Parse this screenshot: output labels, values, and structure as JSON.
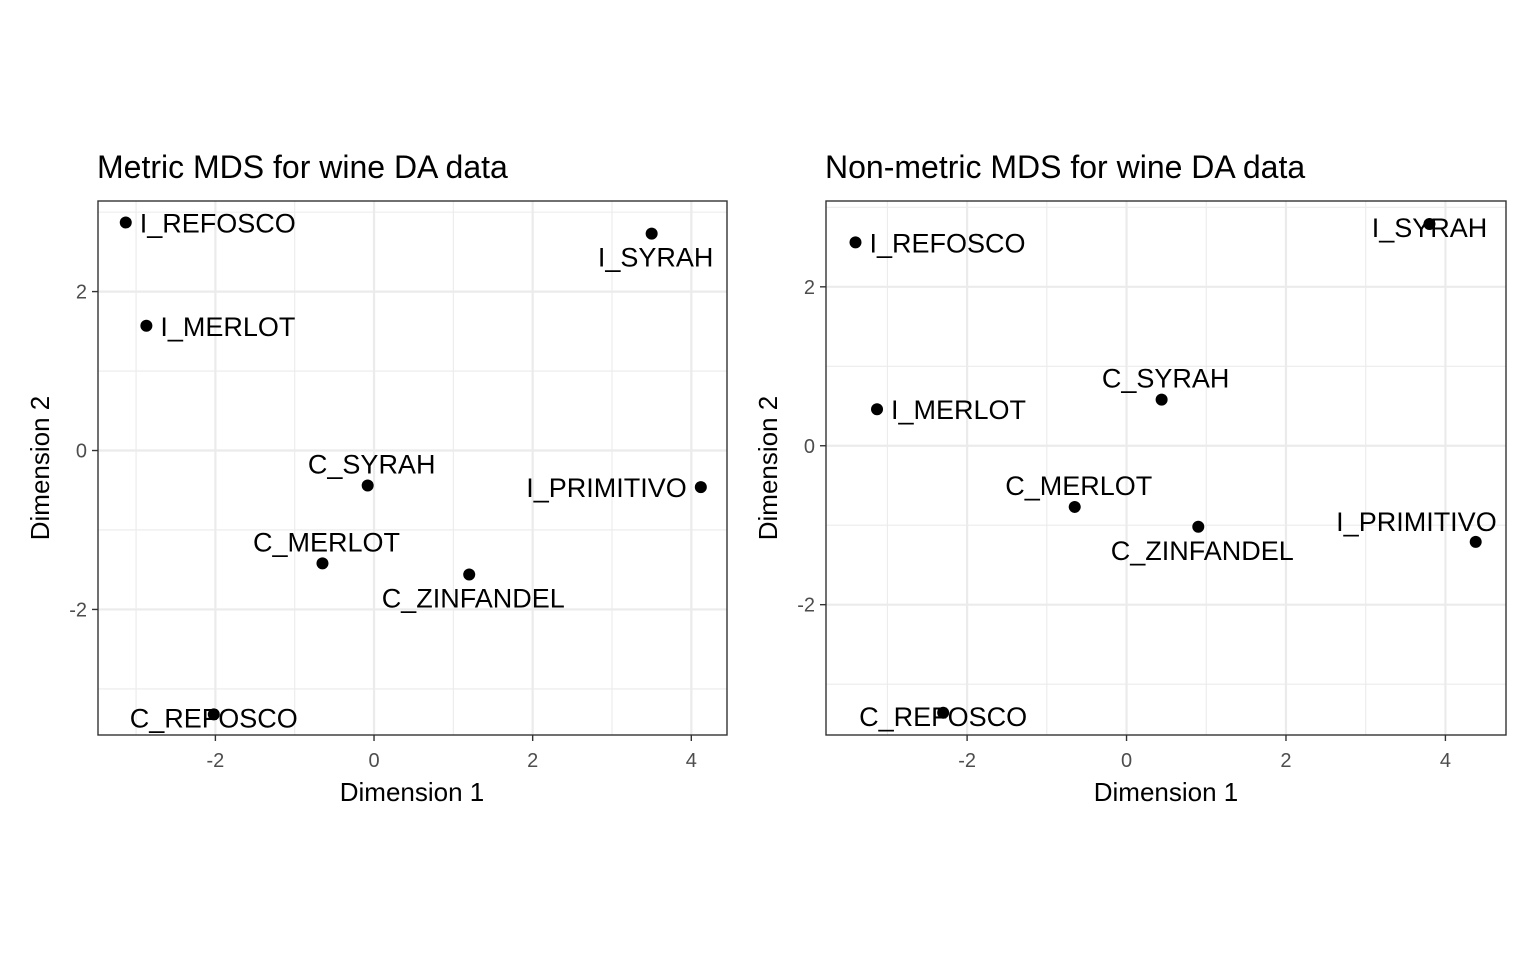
{
  "chart_data": [
    {
      "type": "scatter",
      "title": "Metric MDS for wine DA data",
      "xlabel": "Dimension 1",
      "ylabel": "Dimension 2",
      "xlim": [
        -3.48,
        4.45
      ],
      "ylim": [
        -3.58,
        3.14
      ],
      "xticks": [
        -2,
        0,
        2,
        4
      ],
      "yticks": [
        -2,
        0,
        2
      ],
      "xtick_labels": [
        "-2",
        "0",
        "2",
        "4"
      ],
      "ytick_labels": [
        "-2",
        "0",
        "2"
      ],
      "grid": true,
      "points": [
        {
          "label": "I_REFOSCO",
          "x": -3.13,
          "y": 2.87,
          "label_side": "right"
        },
        {
          "label": "I_SYRAH",
          "x": 3.5,
          "y": 2.73,
          "label_side": "below"
        },
        {
          "label": "I_MERLOT",
          "x": -2.87,
          "y": 1.57,
          "label_side": "right"
        },
        {
          "label": "C_SYRAH",
          "x": -0.08,
          "y": -0.44,
          "label_side": "above"
        },
        {
          "label": "I_PRIMITIVO",
          "x": 4.12,
          "y": -0.46,
          "label_side": "left"
        },
        {
          "label": "C_MERLOT",
          "x": -0.65,
          "y": -1.42,
          "label_side": "above"
        },
        {
          "label": "C_ZINFANDEL",
          "x": 1.2,
          "y": -1.56,
          "label_side": "below"
        },
        {
          "label": "C_REFOSCO",
          "x": -2.02,
          "y": -3.32,
          "label_side": "center"
        }
      ]
    },
    {
      "type": "scatter",
      "title": "Non-metric MDS for wine DA data",
      "xlabel": "Dimension 1",
      "ylabel": "Dimension 2",
      "xlim": [
        -3.77,
        4.76
      ],
      "ylim": [
        -3.64,
        3.08
      ],
      "xticks": [
        -2,
        0,
        2,
        4
      ],
      "yticks": [
        -2,
        0,
        2
      ],
      "xtick_labels": [
        "-2",
        "0",
        "2",
        "4"
      ],
      "ytick_labels": [
        "-2",
        "0",
        "2"
      ],
      "grid": true,
      "points": [
        {
          "label": "I_SYRAH",
          "x": 3.8,
          "y": 2.79,
          "label_side": "center"
        },
        {
          "label": "I_REFOSCO",
          "x": -3.4,
          "y": 2.56,
          "label_side": "right"
        },
        {
          "label": "C_SYRAH",
          "x": 0.44,
          "y": 0.58,
          "label_side": "above"
        },
        {
          "label": "I_MERLOT",
          "x": -3.13,
          "y": 0.46,
          "label_side": "right"
        },
        {
          "label": "C_MERLOT",
          "x": -0.65,
          "y": -0.77,
          "label_side": "above"
        },
        {
          "label": "C_ZINFANDEL",
          "x": 0.9,
          "y": -1.02,
          "label_side": "below"
        },
        {
          "label": "I_PRIMITIVO",
          "x": 4.38,
          "y": -1.21,
          "label_side": "above-left"
        },
        {
          "label": "C_REFOSCO",
          "x": -2.3,
          "y": -3.36,
          "label_side": "center"
        }
      ]
    }
  ]
}
